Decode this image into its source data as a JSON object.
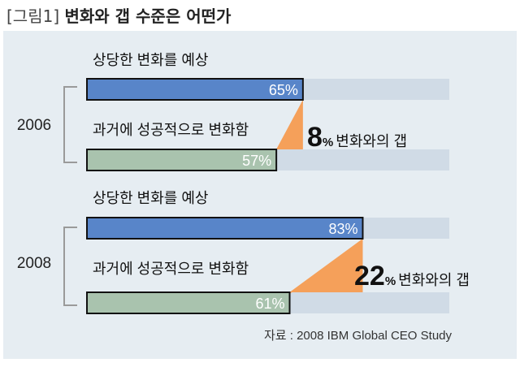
{
  "title_bracket": "[그림1]",
  "title_main": "변화와 갭 수준은 어떤가",
  "source": "자료 : 2008 IBM Global CEO Study",
  "colors": {
    "expected_bar": "#5885c9",
    "achieved_bar": "#a9c3ae",
    "track": "#d0dbe6",
    "gap": "#f5a05a",
    "bracket": "#9a9a9a"
  },
  "chart_data": {
    "type": "bar",
    "orientation": "horizontal",
    "xlim": [
      0,
      100
    ],
    "unit": "%",
    "groups": [
      {
        "year": "2006",
        "expected_label": "상당한 변화를 예상",
        "achieved_label": "과거에 성공적으로 변화함",
        "expected": 65,
        "achieved": 57,
        "gap": 8,
        "gap_label": "변화와의 갭"
      },
      {
        "year": "2008",
        "expected_label": "상당한 변화를 예상",
        "achieved_label": "과거에 성공적으로 변화함",
        "expected": 83,
        "achieved": 61,
        "gap": 22,
        "gap_label": "변화와의 갭"
      }
    ]
  }
}
